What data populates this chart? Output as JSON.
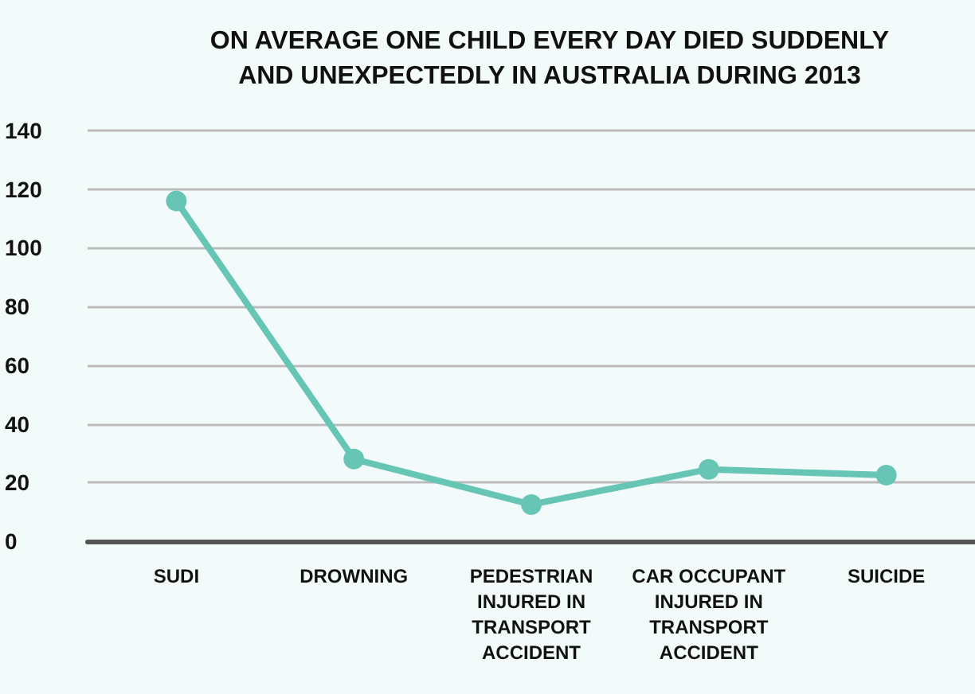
{
  "chart_data": {
    "type": "line",
    "title": "ON AVERAGE ONE CHILD EVERY DAY DIED SUDDENLY\nAND UNEXPECTEDLY IN AUSTRALIA DURING 2013",
    "categories": [
      "SUDI",
      "DROWNING",
      "PEDESTRIAN\nINJURED IN\nTRANSPORT\nACCIDENT",
      "CAR OCCUPANT\nINJURED IN\nTRANSPORT\nACCIDENT",
      "SUICIDE"
    ],
    "series": [
      {
        "color": "#66c5b5",
        "values": [
          116,
          28,
          12.5,
          24.5,
          22.5
        ]
      }
    ],
    "ylim": [
      0,
      140
    ],
    "yticks": [
      0,
      20,
      40,
      60,
      80,
      100,
      120,
      140
    ],
    "grid": "y",
    "marker": "circle",
    "line_style": "solid"
  }
}
